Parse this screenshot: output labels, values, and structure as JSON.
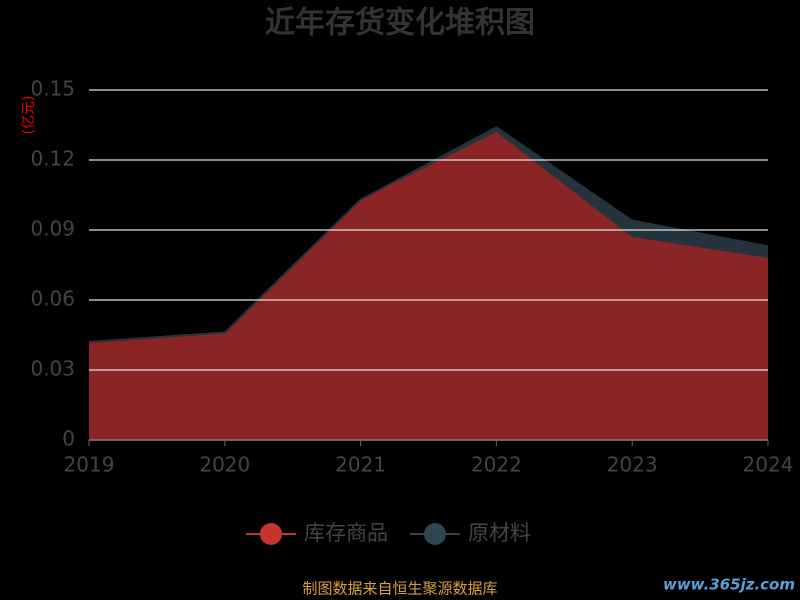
{
  "chart_data": {
    "type": "area",
    "stacked": true,
    "title": "近年存货变化堆积图",
    "y_label": "(亿元)",
    "categories": [
      "2019",
      "2020",
      "2021",
      "2022",
      "2023",
      "2024"
    ],
    "series": [
      {
        "name": "库存商品",
        "color": "#c23531",
        "fill": "#8b2525",
        "values": [
          0.042,
          0.046,
          0.103,
          0.132,
          0.087,
          0.078
        ]
      },
      {
        "name": "原材料",
        "color": "#2f4554",
        "fill": "#25333e",
        "values": [
          0,
          0,
          0,
          0.002,
          0.007,
          0.005
        ]
      }
    ],
    "ylim": [
      0,
      0.15
    ],
    "yticks": [
      0,
      0.03,
      0.06,
      0.09,
      0.12,
      0.15
    ],
    "grid": true,
    "legend": "bottom",
    "source": "制图数据来自恒生聚源数据库",
    "watermark": "www.365jz.com"
  }
}
